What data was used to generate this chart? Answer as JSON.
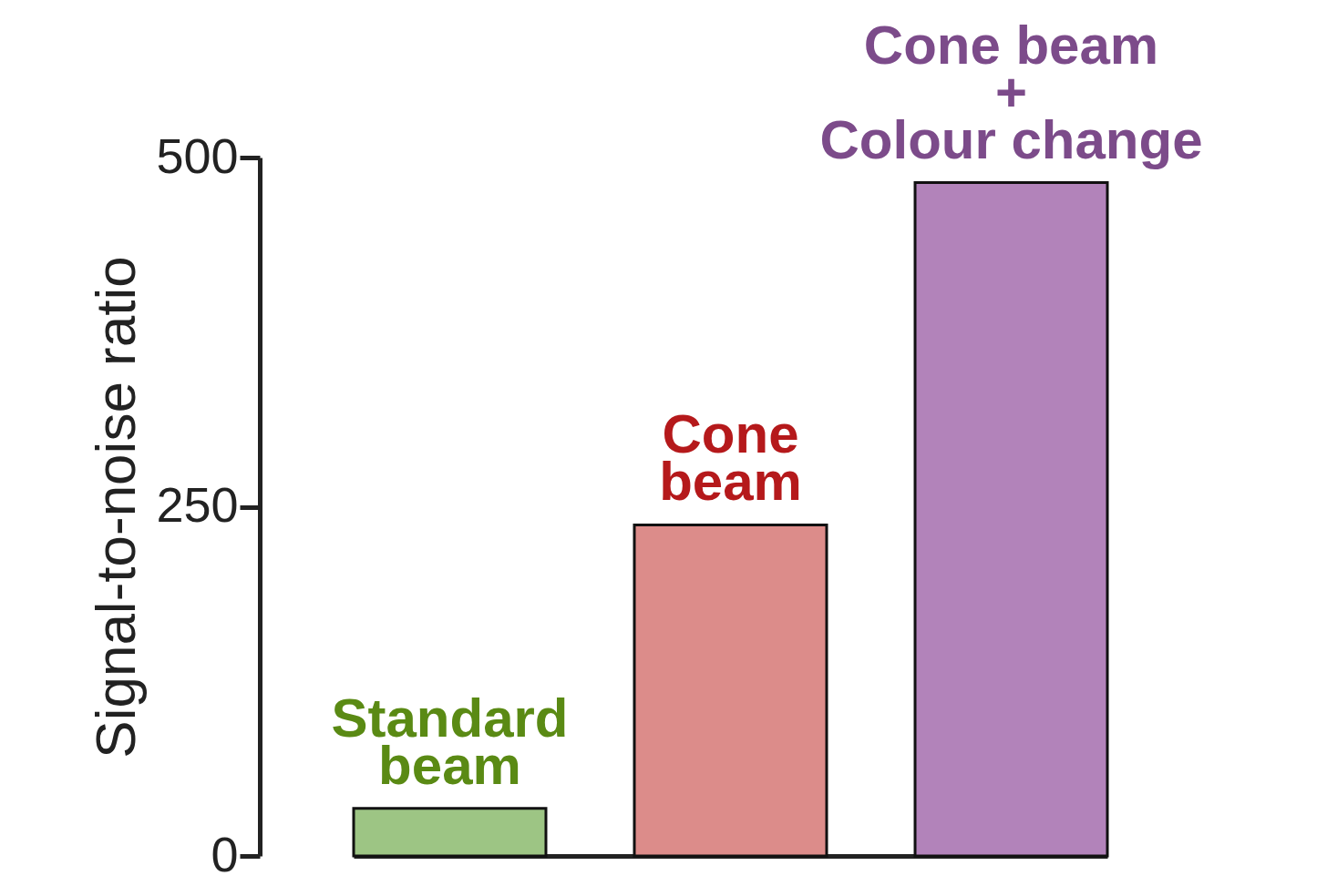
{
  "chart_data": {
    "type": "bar",
    "categories": [
      "Standard\nbeam",
      "Cone\nbeam",
      "Cone beam\n+\nColour change"
    ],
    "values": [
      34,
      237,
      482
    ],
    "colors": [
      "#9dc584",
      "#dc8c8a",
      "#b283ba"
    ],
    "ylabel": "Signal-to-noise ratio",
    "ylim": [
      0,
      500
    ],
    "yticks": [
      0,
      250,
      500
    ]
  }
}
